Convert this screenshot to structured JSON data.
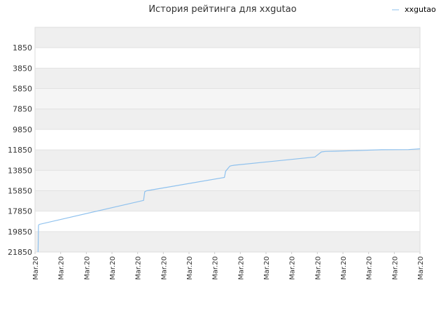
{
  "chart_data": {
    "type": "line",
    "title": "История рейтинга для xxgutao",
    "xlabel": "",
    "ylabel": "",
    "y_axis_reversed": true,
    "ylim": [
      21850,
      -150
    ],
    "y_ticks": [
      1850,
      3850,
      5850,
      7850,
      9850,
      11850,
      13850,
      15850,
      17850,
      19850,
      21850
    ],
    "x_ticks": [
      "Mar.20",
      "Mar.20",
      "Mar.20",
      "Mar.20",
      "Mar.20",
      "Mar.20",
      "Mar.20",
      "Mar.20",
      "Mar.20",
      "Mar.20",
      "Mar.20",
      "Mar.20",
      "Mar.20",
      "Mar.20",
      "Mar.20",
      "Mar.20"
    ],
    "legend_position": "top-right",
    "grid": true,
    "series": [
      {
        "name": "xxgutao",
        "color": "#8ec1ee",
        "x": [
          0.008,
          0.009,
          0.011,
          0.282,
          0.285,
          0.29,
          0.492,
          0.495,
          0.506,
          0.51,
          0.518,
          0.727,
          0.744,
          0.755,
          0.78,
          0.851,
          0.9,
          0.97,
          1.0
        ],
        "values": [
          21850,
          19250,
          19150,
          16800,
          15950,
          15850,
          14550,
          13950,
          13450,
          13400,
          13350,
          12550,
          12050,
          12000,
          11980,
          11900,
          11840,
          11820,
          11750
        ]
      }
    ]
  }
}
